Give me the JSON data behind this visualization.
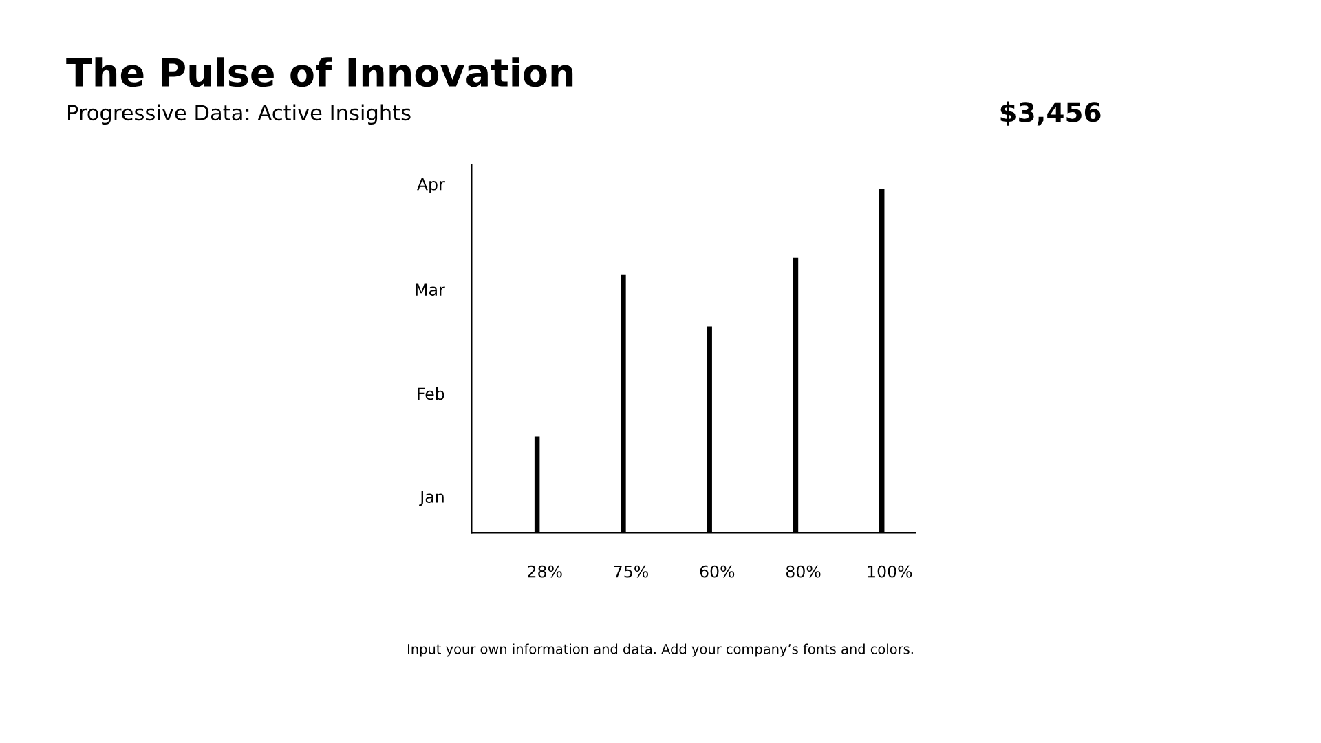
{
  "chart_data": {
    "type": "bar",
    "title": "The Pulse of Innovation",
    "subtitle": "Progressive Data: Active Insights",
    "categories": [
      null,
      null,
      null,
      null,
      null
    ],
    "values": [
      28,
      75,
      60,
      80,
      100
    ],
    "ylim": [
      0,
      107
    ],
    "value_labels": [
      "28%",
      "75%",
      "60%",
      "80%",
      "100%"
    ],
    "color": "#000000",
    "grid": false,
    "legend": false,
    "annotations": [
      "$3,456",
      "Input your own information and data. Add your company’s fonts and colors.",
      "Jan",
      "Feb",
      "Mar",
      "Apr"
    ]
  }
}
